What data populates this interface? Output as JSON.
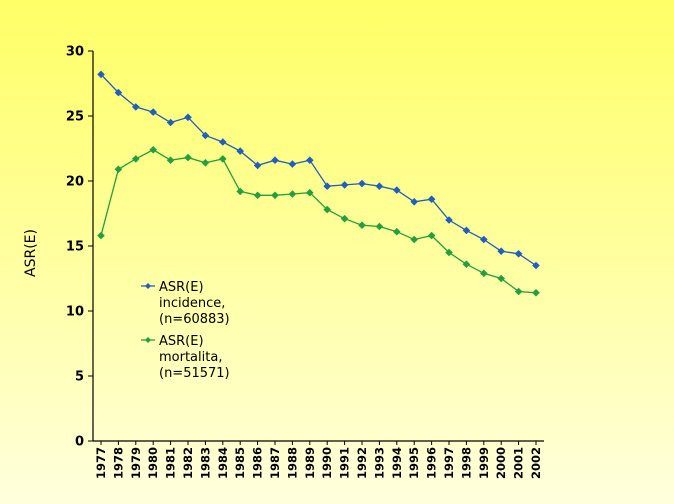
{
  "chart_data": {
    "type": "line",
    "title": "",
    "xlabel": "",
    "ylabel": "ASR(E)",
    "ylim": [
      0,
      30
    ],
    "yticks": [
      0,
      5,
      10,
      15,
      20,
      25,
      30
    ],
    "grid": false,
    "legend_position": "center-left",
    "categories": [
      "1977",
      "1978",
      "1979",
      "1980",
      "1981",
      "1982",
      "1983",
      "1984",
      "1985",
      "1986",
      "1987",
      "1988",
      "1989",
      "1990",
      "1991",
      "1992",
      "1993",
      "1994",
      "1995",
      "1996",
      "1997",
      "1998",
      "1999",
      "2000",
      "2001",
      "2002"
    ],
    "series": [
      {
        "name": "incidence",
        "legend_lines": [
          "ASR(E)",
          "incidence,",
          "(n=60883)"
        ],
        "color": "#1f5fbf",
        "values": [
          28.2,
          26.8,
          25.7,
          25.3,
          24.5,
          24.9,
          23.5,
          23.0,
          22.3,
          21.2,
          21.6,
          21.3,
          21.6,
          19.6,
          19.7,
          19.8,
          19.6,
          19.3,
          18.4,
          18.6,
          17.0,
          16.2,
          15.5,
          14.6,
          14.4,
          13.5
        ]
      },
      {
        "name": "mortalita",
        "legend_lines": [
          "ASR(E)",
          "mortalita,",
          "(n=51571)"
        ],
        "color": "#22a040",
        "values": [
          15.8,
          20.9,
          21.7,
          22.4,
          21.6,
          21.8,
          21.4,
          21.7,
          19.2,
          18.9,
          18.9,
          19.0,
          19.1,
          17.8,
          17.1,
          16.6,
          16.5,
          16.1,
          15.5,
          15.8,
          14.5,
          13.6,
          12.9,
          12.5,
          11.5,
          11.4
        ]
      }
    ]
  }
}
